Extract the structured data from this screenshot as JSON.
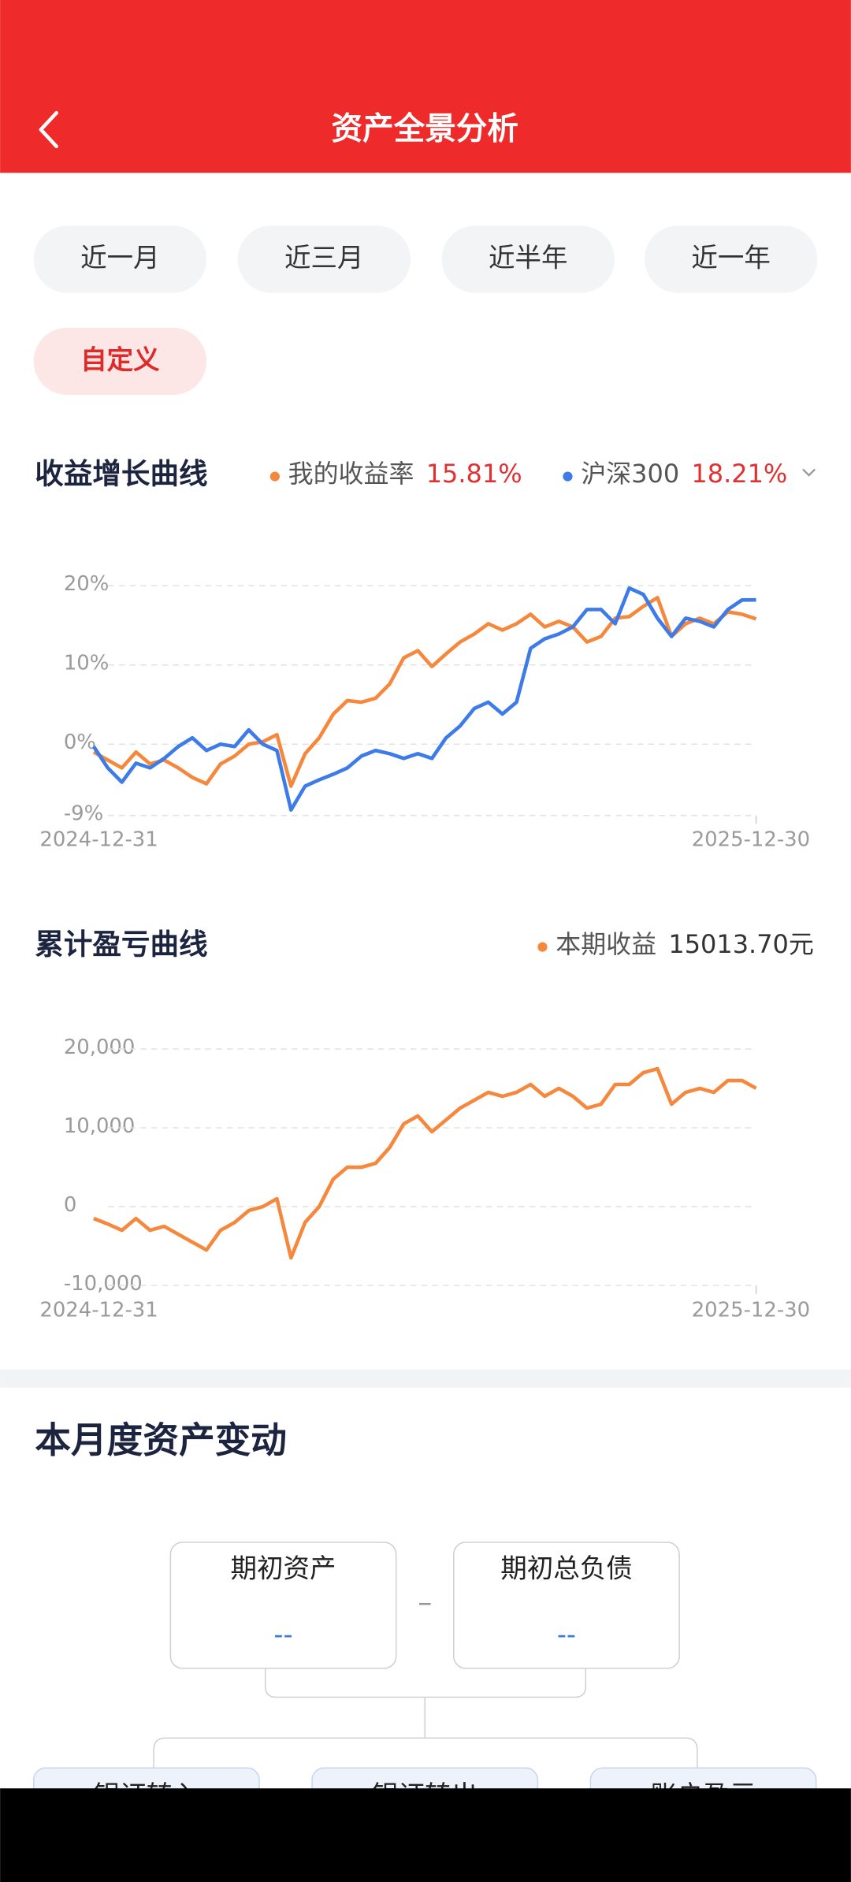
{
  "header": {
    "title": "资产全景分析"
  },
  "tabs": {
    "items": [
      "近一月",
      "近三月",
      "近半年",
      "近一年",
      "自定义"
    ],
    "selected": 4
  },
  "chart_data": [
    {
      "type": "line",
      "title": "收益增长曲线",
      "categories": [
        "2024-12-31",
        null,
        null,
        null,
        null,
        null,
        null,
        null,
        null,
        null,
        null,
        null,
        null,
        null,
        null,
        null,
        null,
        null,
        null,
        null,
        null,
        null,
        null,
        null,
        null,
        null,
        null,
        null,
        null,
        null,
        null,
        null,
        null,
        null,
        null,
        null,
        null,
        null,
        null,
        null,
        null,
        null,
        null,
        null,
        null,
        null,
        null,
        "2025-12-30"
      ],
      "series": [
        {
          "name": "我的收益率",
          "color": "#f5883c",
          "summary": "15.81%",
          "values": [
            -1,
            -2,
            -3,
            -1,
            -2.5,
            -2,
            -3,
            -4.2,
            -5,
            -2.5,
            -1.5,
            0,
            0.3,
            1.2,
            -5.3,
            -1.2,
            0.8,
            3.8,
            5.5,
            5.3,
            5.8,
            7.6,
            10.9,
            11.8,
            9.8,
            11.4,
            12.9,
            13.9,
            15.2,
            14.4,
            15.2,
            16.4,
            14.8,
            15.5,
            14.8,
            12.9,
            13.6,
            15.9,
            16.1,
            17.4,
            18.5,
            13.6,
            15.2,
            15.9,
            15.2,
            16.7,
            16.4,
            15.81
          ]
        },
        {
          "name": "沪深300",
          "color": "#3d7be8",
          "summary": "18.21%",
          "values": [
            -0.3,
            -3,
            -4.8,
            -2.4,
            -3,
            -1.8,
            -0.3,
            0.8,
            -0.8,
            0,
            -0.3,
            1.8,
            0,
            -0.8,
            -8.3,
            -5.3,
            -4.5,
            -3.8,
            -3,
            -1.5,
            -0.8,
            -1.2,
            -1.8,
            -1.2,
            -1.8,
            0.8,
            2.3,
            4.5,
            5.3,
            3.8,
            5.3,
            12.1,
            13.3,
            13.9,
            14.8,
            17,
            17,
            15.2,
            19.7,
            18.9,
            15.9,
            13.6,
            15.9,
            15.5,
            14.8,
            17,
            18.2,
            18.21
          ]
        }
      ],
      "ylim": [
        -9,
        21
      ],
      "yticks": [
        {
          "value": 20,
          "label": "20%"
        },
        {
          "value": 10,
          "label": "10%"
        },
        {
          "value": 0,
          "label": "0%"
        },
        {
          "value": -9,
          "label": "-9%"
        }
      ],
      "grid": true
    },
    {
      "type": "line",
      "title": "累计盈亏曲线",
      "categories": [
        "2024-12-31",
        null,
        null,
        null,
        null,
        null,
        null,
        null,
        null,
        null,
        null,
        null,
        null,
        null,
        null,
        null,
        null,
        null,
        null,
        null,
        null,
        null,
        null,
        null,
        null,
        null,
        null,
        null,
        null,
        null,
        null,
        null,
        null,
        null,
        null,
        null,
        null,
        null,
        null,
        null,
        null,
        null,
        null,
        null,
        null,
        null,
        null,
        "2025-12-30"
      ],
      "series": [
        {
          "name": "本期收益",
          "color": "#f5883c",
          "summary": "15013.70元",
          "values": [
            -1500,
            -2200,
            -3000,
            -1500,
            -3000,
            -2500,
            -3500,
            -4500,
            -5500,
            -3000,
            -2000,
            -500,
            0,
            1000,
            -6500,
            -2000,
            0,
            3500,
            5000,
            5000,
            5500,
            7500,
            10500,
            11500,
            9500,
            11000,
            12500,
            13500,
            14500,
            14000,
            14500,
            15500,
            14000,
            15000,
            14000,
            12500,
            13000,
            15500,
            15500,
            17000,
            17500,
            13000,
            14500,
            15000,
            14500,
            16000,
            16000,
            15013.7
          ]
        }
      ],
      "ylim": [
        -10000,
        21000
      ],
      "yticks": [
        {
          "value": 20000,
          "label": "20,000"
        },
        {
          "value": 10000,
          "label": "10,000"
        },
        0,
        {
          "value": -10000,
          "label": "-10,000"
        }
      ],
      "grid": true
    }
  ],
  "asset_changes": {
    "title": "本月度资产变动",
    "boxes": [
      {
        "label": "期初资产",
        "value": "--"
      },
      {
        "label": "期初总负债",
        "value": "--"
      }
    ],
    "operator": "–",
    "items": [
      "银证转入",
      "银证转出",
      "账户盈亏"
    ]
  }
}
